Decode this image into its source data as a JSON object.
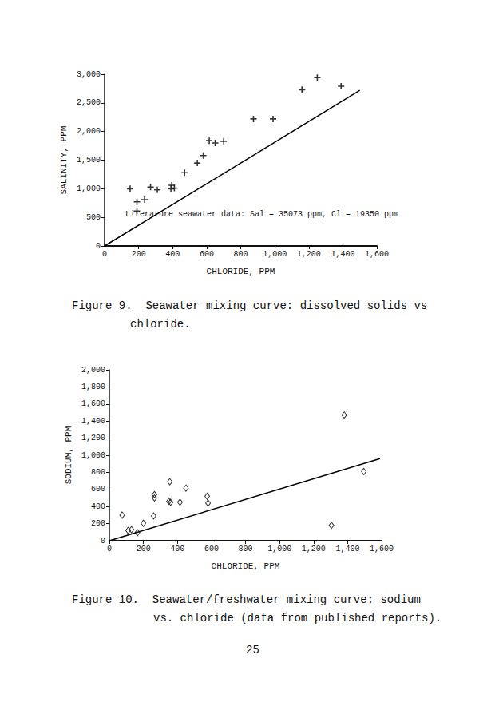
{
  "chart_data": [
    {
      "type": "scatter",
      "ylabel": "SALINITY, PPM",
      "xlabel": "CHLORIDE, PPM",
      "annotation": "Literature seawater data: Sal = 35073 ppm, Cl = 19350 ppm",
      "xlim": [
        0,
        1600
      ],
      "xticks": [
        0,
        200,
        400,
        600,
        800,
        1000,
        1200,
        1400,
        1600
      ],
      "ylim": [
        0,
        3000
      ],
      "yticks": [
        0,
        500,
        1000,
        1500,
        2000,
        2500,
        3000
      ],
      "grid": false,
      "series": [
        {
          "type": "scatter",
          "marker": "plus",
          "color": "#000000",
          "x": [
            190,
            190,
            235,
            150,
            270,
            310,
            390,
            395,
            410,
            470,
            545,
            580,
            615,
            650,
            700,
            875,
            990,
            1160,
            1250,
            1390
          ],
          "values": [
            610,
            770,
            810,
            1000,
            1030,
            980,
            1000,
            1060,
            1010,
            1280,
            1450,
            1580,
            1840,
            1800,
            1830,
            2220,
            2220,
            2730,
            2940,
            2790
          ]
        },
        {
          "type": "line",
          "line_style": "solid",
          "color": "#000000",
          "x": [
            0,
            1500
          ],
          "values": [
            0,
            2719
          ]
        }
      ]
    },
    {
      "type": "scatter",
      "ylabel": "SODIUM, PPM",
      "xlabel": "CHLORIDE, PPM",
      "xlim": [
        0,
        1600
      ],
      "xticks": [
        0,
        200,
        400,
        600,
        800,
        1000,
        1200,
        1400,
        1600
      ],
      "ylim": [
        0,
        2000
      ],
      "yticks": [
        0,
        200,
        400,
        600,
        800,
        1000,
        1200,
        1400,
        1600,
        1800,
        2000
      ],
      "grid": false,
      "series": [
        {
          "type": "scatter",
          "marker": "diamond",
          "color": "#000000",
          "x": [
            75,
            110,
            130,
            165,
            200,
            260,
            265,
            265,
            350,
            355,
            360,
            415,
            450,
            575,
            580,
            1305,
            1380,
            1495
          ],
          "values": [
            300,
            120,
            130,
            95,
            205,
            290,
            500,
            540,
            460,
            690,
            450,
            450,
            615,
            520,
            440,
            180,
            1470,
            810
          ]
        },
        {
          "type": "line",
          "line_style": "solid",
          "color": "#000000",
          "x": [
            0,
            1590
          ],
          "values": [
            0,
            960
          ]
        }
      ]
    }
  ],
  "captions": [
    [
      "Figure 9.  Seawater mixing curve: dissolved solids vs",
      "chloride."
    ],
    [
      "Figure 10.  Seawater/freshwater mixing curve: sodium",
      "vs. chloride (data from published reports)."
    ]
  ],
  "page_number": "25"
}
